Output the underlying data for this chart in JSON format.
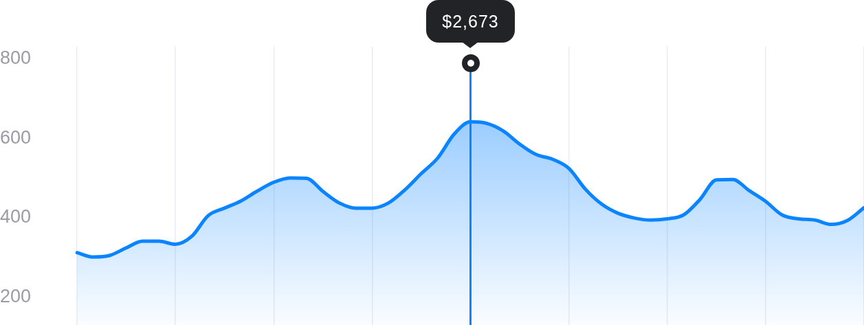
{
  "chart_data": {
    "type": "area",
    "categories": [
      null,
      null,
      null,
      null,
      null,
      null,
      null,
      null,
      null,
      null,
      null,
      null,
      null,
      null,
      null,
      null,
      null,
      null,
      null,
      null,
      null,
      null,
      null,
      null,
      null,
      null,
      null,
      null,
      null,
      null,
      null,
      null,
      null,
      null,
      null,
      null,
      null,
      null,
      null,
      null,
      null,
      null,
      null,
      null,
      null,
      null,
      null,
      null,
      null
    ],
    "series": [
      {
        "color": "#0a84ff",
        "values": [
          312,
          301,
          305,
          324,
          341,
          341,
          333,
          353,
          405,
          424,
          442,
          467,
          489,
          500,
          499,
          466,
          437,
          424,
          424,
          437,
          470,
          511,
          550,
          610,
          641,
          637,
          618,
          585,
          559,
          547,
          524,
          472,
          434,
          411,
          399,
          394,
          397,
          407,
          446,
          495,
          496,
          468,
          441,
          407,
          397,
          394,
          383,
          393,
          425
        ]
      }
    ],
    "ylim": [
      130,
      830
    ],
    "yticks": [
      200,
      400,
      600,
      800
    ],
    "grid": "x",
    "annotations": [
      "$2,673"
    ]
  }
}
